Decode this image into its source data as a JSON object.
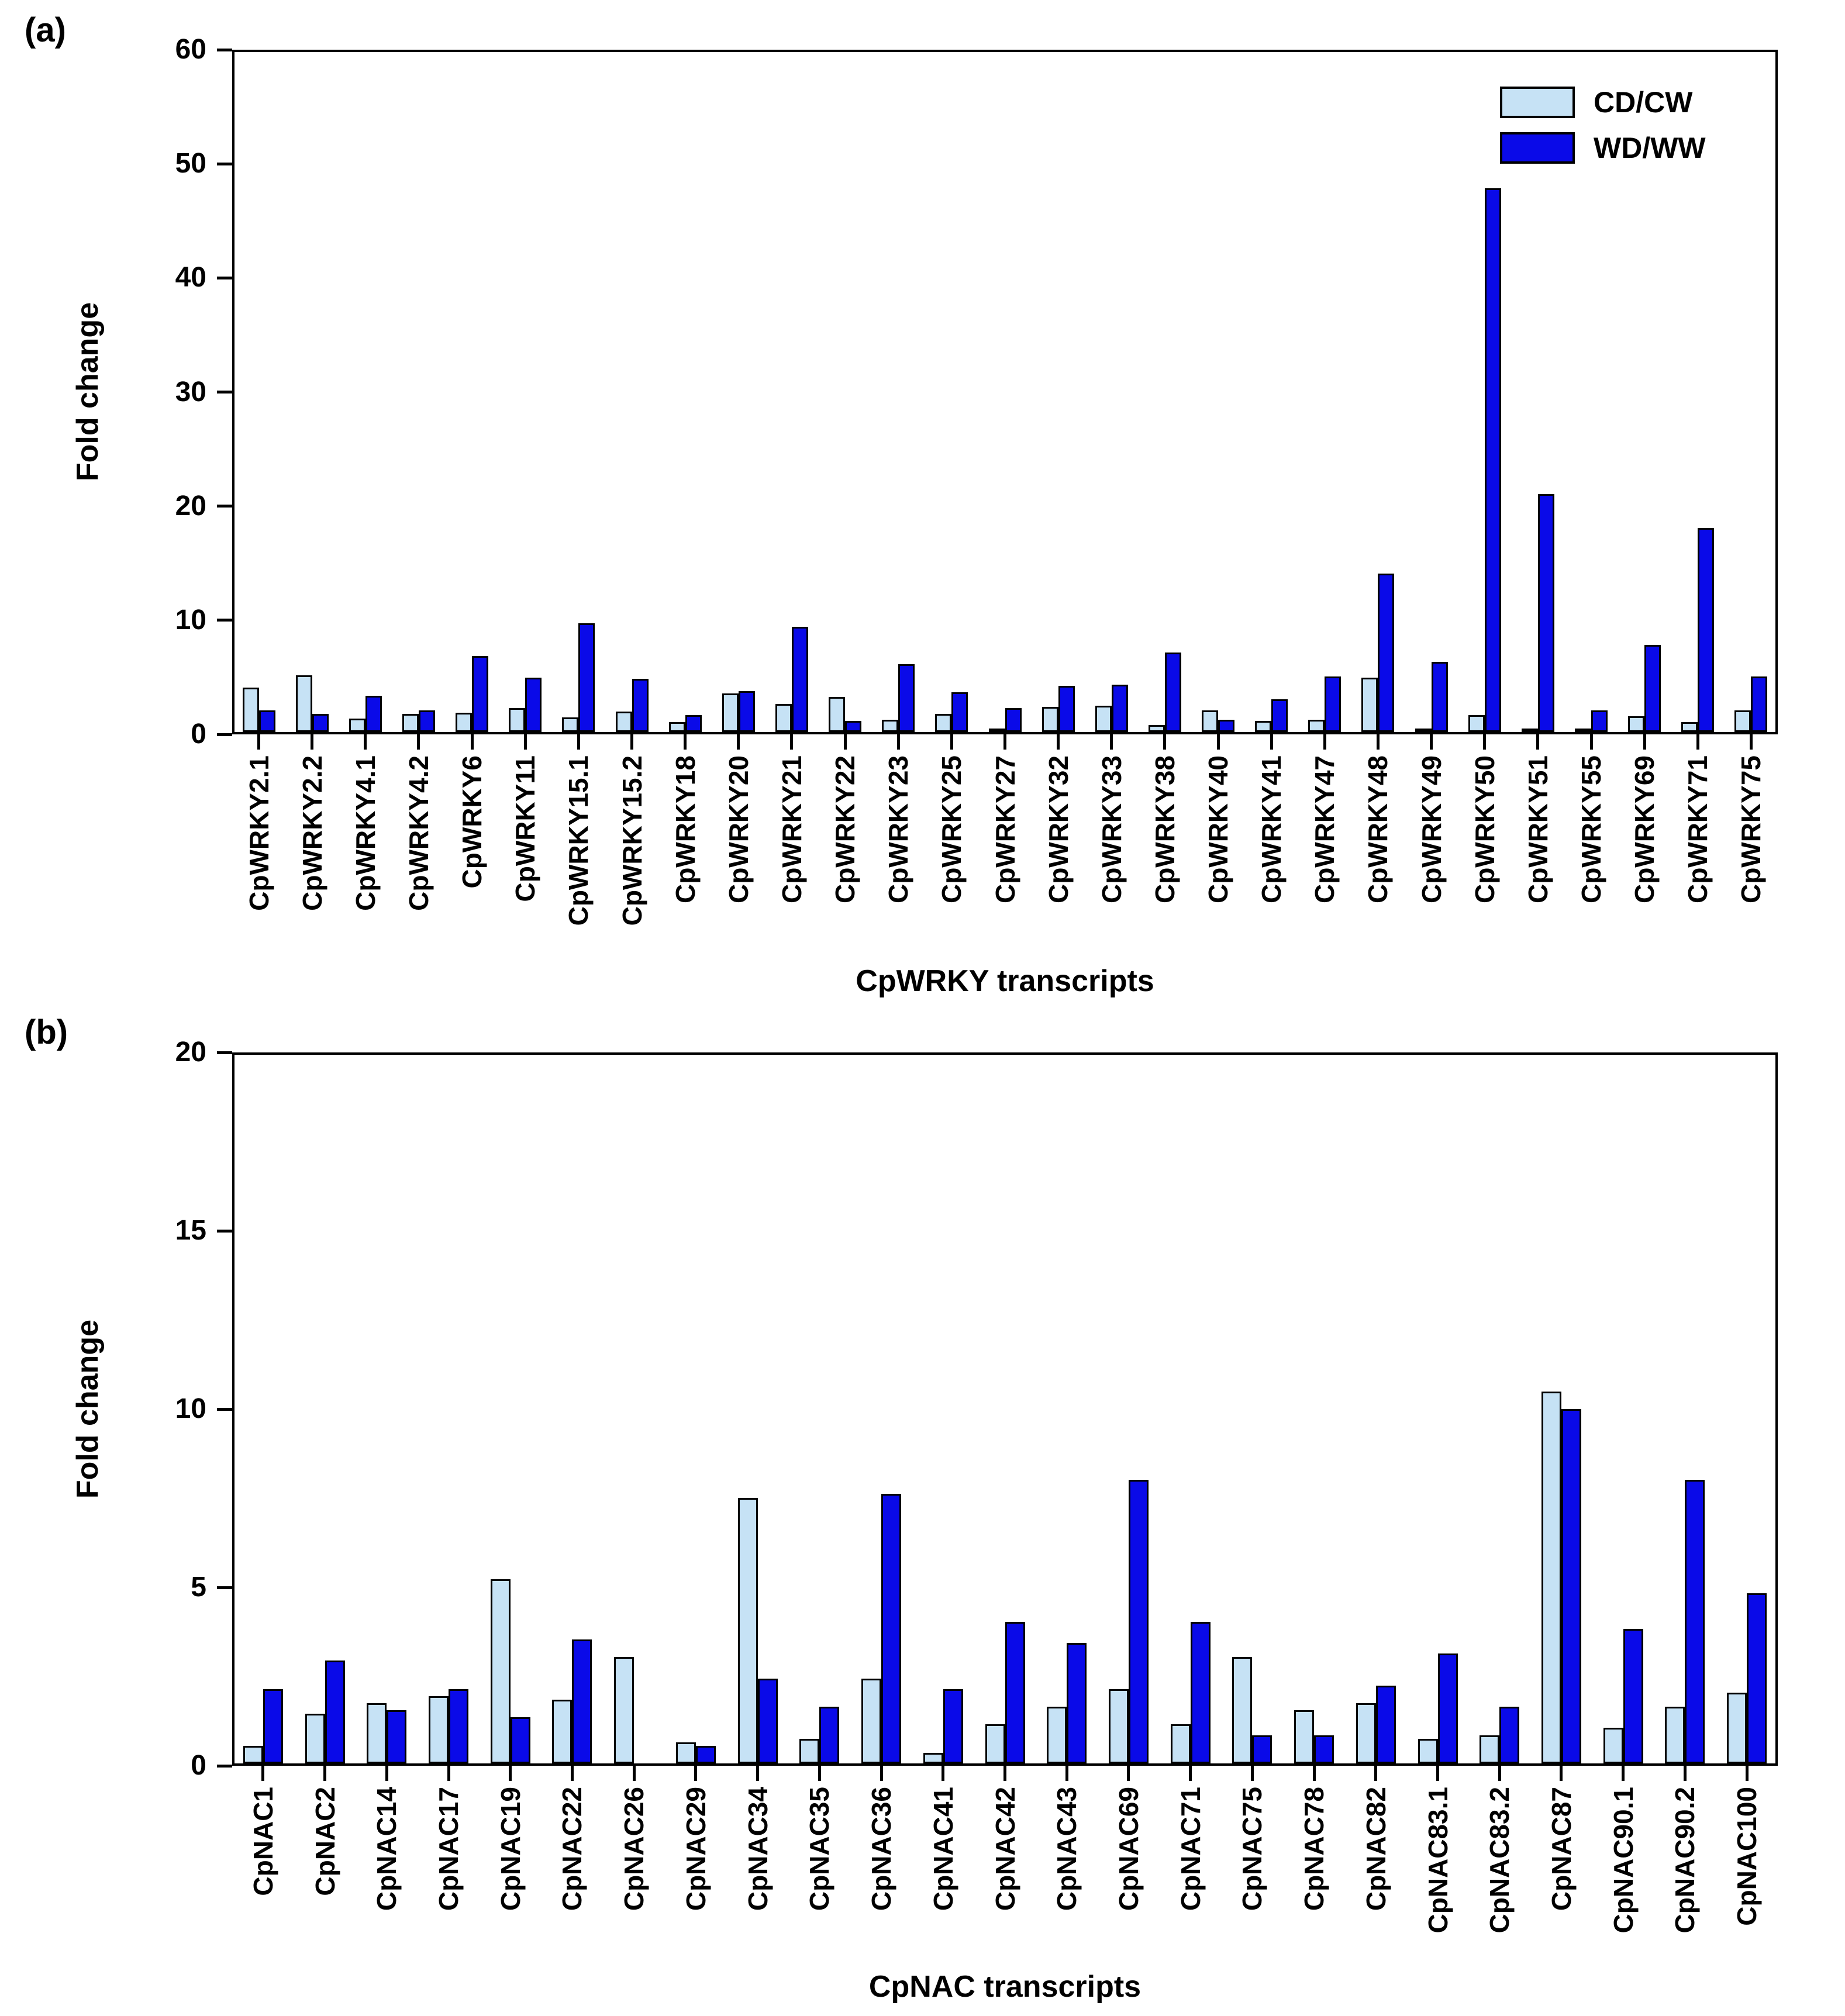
{
  "figure": {
    "panel_a_letter": "(a)",
    "panel_b_letter": "(b)",
    "background_color": "#ffffff",
    "axis_color": "#000000"
  },
  "chart_data": [
    {
      "id": "a",
      "type": "bar",
      "panel_label": "(a)",
      "title": "",
      "xlabel": "CpWRKY transcripts",
      "ylabel": "Fold change",
      "ylim": [
        0,
        60
      ],
      "yticks": [
        0,
        10,
        20,
        30,
        40,
        50,
        60
      ],
      "grid": false,
      "legend_position": "top-right-inside",
      "categories": [
        "CpWRKY2.1",
        "CpWRKY2.2",
        "CpWRKY4.1",
        "CpWRKY4.2",
        "CpWRKY6",
        "CpWRKY11",
        "CpWRKY15.1",
        "CpWRKY15.2",
        "CpWRKY18",
        "CpWRKY20",
        "CpWRKY21",
        "CpWRKY22",
        "CpWRKY23",
        "CpWRKY25",
        "CpWRKY27",
        "CpWRKY32",
        "CpWRKY33",
        "CpWRKY38",
        "CpWRKY40",
        "CpWRKY41",
        "CpWRKY47",
        "CpWRKY48",
        "CpWRKY49",
        "CpWRKY50",
        "CpWRKY51",
        "CpWRKY55",
        "CpWRKY69",
        "CpWRKY71",
        "CpWRKY75"
      ],
      "series": [
        {
          "name": "CD/CW",
          "color": "#C6E2F5",
          "values": [
            3.9,
            5.0,
            1.2,
            1.6,
            1.7,
            2.1,
            1.3,
            1.8,
            0.9,
            3.4,
            2.5,
            3.1,
            1.1,
            1.6,
            0.15,
            2.2,
            2.3,
            0.6,
            1.9,
            1.0,
            1.1,
            4.8,
            0.3,
            1.5,
            0.3,
            0.1,
            1.4,
            0.9,
            1.9
          ]
        },
        {
          "name": "WD/WW",
          "color": "#0A0AE8",
          "values": [
            1.9,
            1.6,
            3.2,
            1.9,
            6.7,
            4.8,
            9.6,
            4.7,
            1.5,
            3.6,
            9.3,
            1.0,
            6.0,
            3.5,
            2.1,
            4.1,
            4.2,
            7.0,
            1.1,
            2.9,
            4.9,
            14.0,
            6.2,
            48.0,
            21.0,
            1.9,
            7.7,
            18.0,
            4.9
          ]
        }
      ]
    },
    {
      "id": "b",
      "type": "bar",
      "panel_label": "(b)",
      "title": "",
      "xlabel": "CpNAC transcripts",
      "ylabel": "Fold change",
      "ylim": [
        0,
        20
      ],
      "yticks": [
        0,
        5,
        10,
        15,
        20
      ],
      "grid": false,
      "legend_position": "none",
      "categories": [
        "CpNAC1",
        "CpNAC2",
        "CpNAC14",
        "CpNAC17",
        "CpNAC19",
        "CpNAC22",
        "CpNAC26",
        "CpNAC29",
        "CpNAC34",
        "CpNAC35",
        "CpNAC36",
        "CpNAC41",
        "CpNAC42",
        "CpNAC43",
        "CpNAC69",
        "CpNAC71",
        "CpNAC75",
        "CpNAC78",
        "CpNAC82",
        "CpNAC83.1",
        "CpNAC83.2",
        "CpNAC87",
        "CpNAC90.1",
        "CpNAC90.2",
        "CpNAC100"
      ],
      "series": [
        {
          "name": "CD/CW",
          "color": "#C6E2F5",
          "values": [
            0.5,
            1.4,
            1.7,
            1.9,
            5.2,
            1.8,
            3.0,
            0.6,
            7.5,
            0.7,
            2.4,
            0.3,
            1.1,
            1.6,
            2.1,
            1.1,
            3.0,
            1.5,
            1.7,
            0.7,
            0.8,
            10.5,
            1.0,
            1.6,
            2.0
          ]
        },
        {
          "name": "WD/WW",
          "color": "#0A0AE8",
          "values": [
            2.1,
            2.9,
            1.5,
            2.1,
            1.3,
            3.5,
            0,
            0.5,
            2.4,
            1.6,
            7.6,
            2.1,
            4.0,
            3.4,
            8.0,
            4.0,
            0.8,
            0.8,
            2.2,
            3.1,
            1.6,
            10.0,
            3.8,
            8.0,
            4.8
          ]
        }
      ]
    }
  ]
}
